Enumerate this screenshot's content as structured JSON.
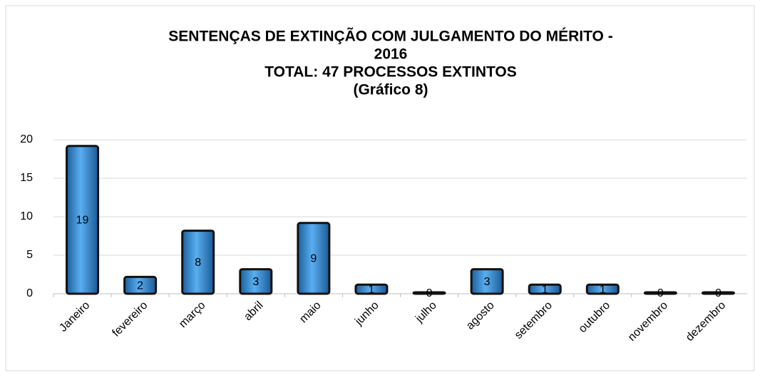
{
  "chart_data": {
    "type": "bar",
    "title": [
      "SENTENÇAS DE EXTINÇÃO COM JULGAMENTO DO MÉRITO -",
      "2016",
      "TOTAL: 47 PROCESSOS EXTINTOS",
      "(Gráfico 8)"
    ],
    "categories": [
      "Janeiro",
      "fevereiro",
      "março",
      "abril",
      "maio",
      "junho",
      "julho",
      "agosto",
      "setembro",
      "outubro",
      "novembro",
      "dezembro"
    ],
    "values": [
      19,
      2,
      8,
      3,
      9,
      1,
      0,
      3,
      1,
      1,
      0,
      0
    ],
    "color": "#2f86d0",
    "ylim": [
      0,
      20
    ],
    "yticks": [
      0,
      5,
      10,
      15,
      20
    ],
    "grid": true
  }
}
